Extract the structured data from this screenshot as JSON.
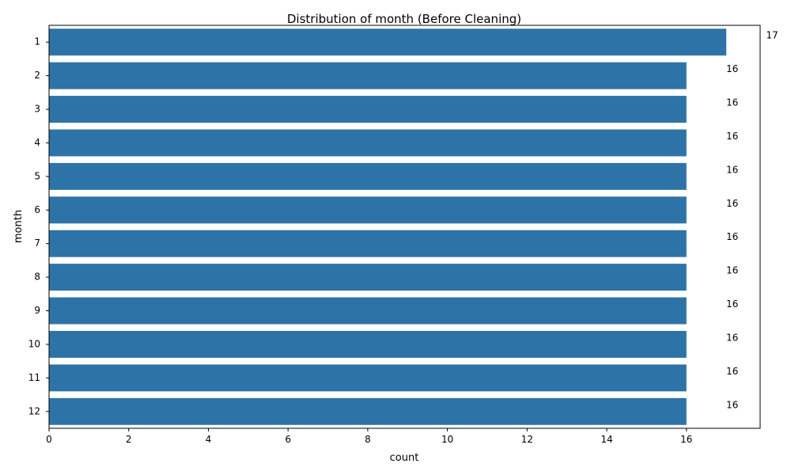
{
  "chart_data": {
    "type": "bar",
    "orientation": "horizontal",
    "title": "Distribution of month (Before Cleaning)",
    "xlabel": "count",
    "ylabel": "month",
    "categories": [
      "1",
      "2",
      "3",
      "4",
      "5",
      "6",
      "7",
      "8",
      "9",
      "10",
      "11",
      "12"
    ],
    "values": [
      17,
      16,
      16,
      16,
      16,
      16,
      16,
      16,
      16,
      16,
      16,
      16
    ],
    "data_labels": [
      "17",
      "16",
      "16",
      "16",
      "16",
      "16",
      "16",
      "16",
      "16",
      "16",
      "16",
      "16"
    ],
    "xlim": [
      0,
      17.85
    ],
    "xticks": [
      0,
      2,
      4,
      6,
      8,
      10,
      12,
      14,
      16
    ],
    "grid": false,
    "legend": "none",
    "bar_color": "#2e73a8"
  }
}
